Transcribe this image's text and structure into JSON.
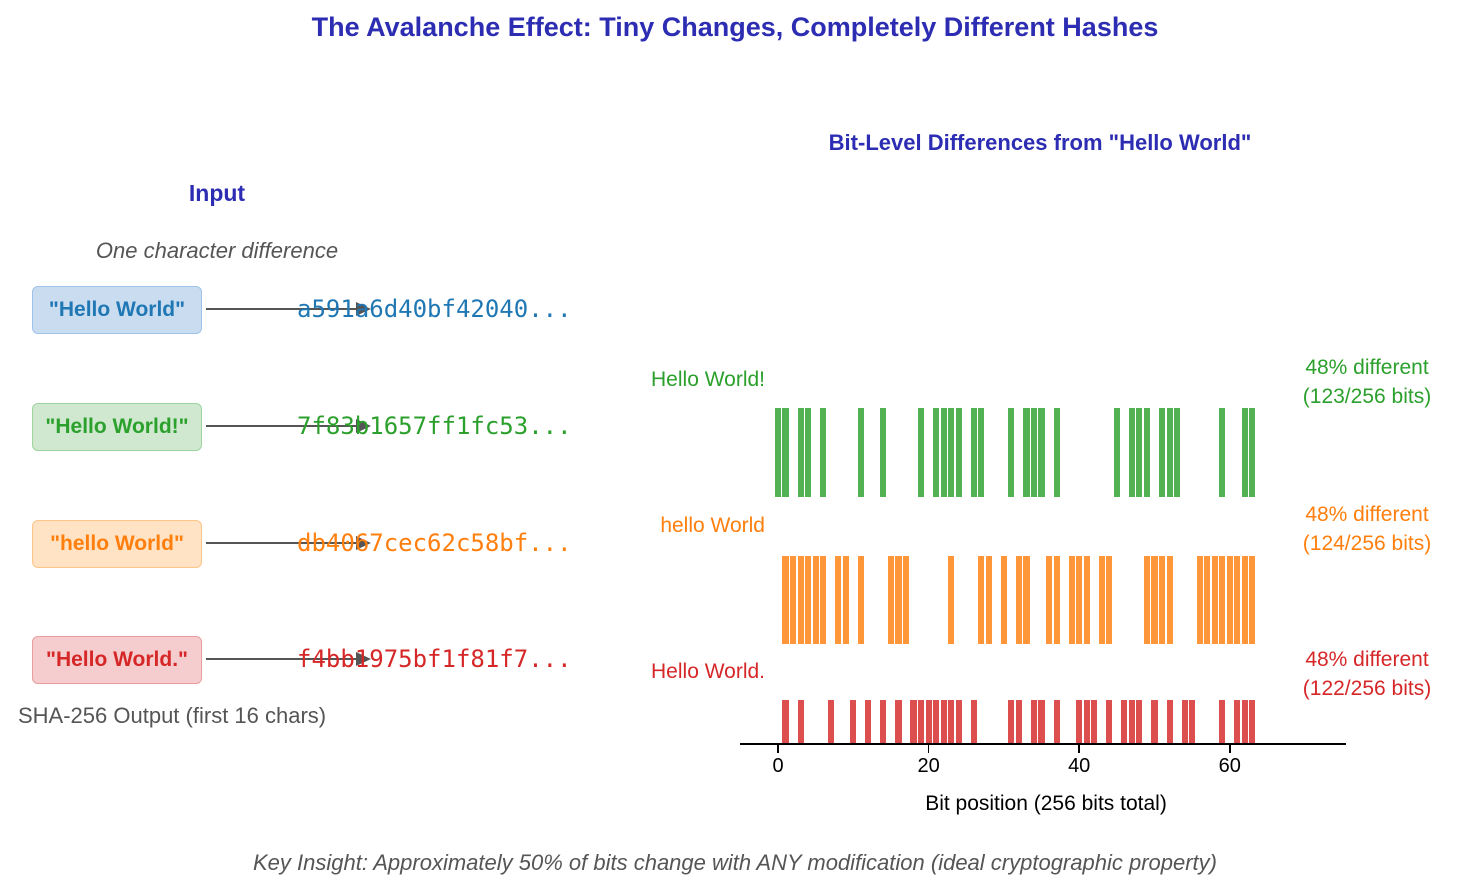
{
  "title": "The Avalanche Effect: Tiny Changes, Completely Different Hashes",
  "colors": {
    "title": "#2d2db3",
    "muted_text": "#555555",
    "blue": "#1f77b4",
    "green": "#2ca02c",
    "orange": "#ff7f0e",
    "red": "#d62728"
  },
  "left_panel": {
    "header": "Input",
    "subtitle": "One character difference",
    "footer": "SHA-256 Output (first 16 chars)",
    "inputs": [
      {
        "label": "\"Hello World\"",
        "hash": "a591a6d40bf42040...",
        "color": "#1f77b4"
      },
      {
        "label": "\"Hello World!\"",
        "hash": "7f83b1657ff1fc53...",
        "color": "#2ca02c"
      },
      {
        "label": "\"hello World\"",
        "hash": "db4067cec62c58bf...",
        "color": "#ff7f0e"
      },
      {
        "label": "\"Hello World.\"",
        "hash": "f4bb1975bf1f81f7...",
        "color": "#d62728"
      }
    ]
  },
  "chart_data": {
    "type": "event-barcode",
    "title": "Bit-Level Differences from \"Hello World\"",
    "baseline_input": "\"Hello World\"",
    "xlabel": "Bit position (256 bits total)",
    "x_ticks": [
      0,
      20,
      40,
      60
    ],
    "bits_shown": 64,
    "total_bits": 256,
    "legend_position": "none",
    "series": [
      {
        "name": "Hello World!",
        "color": "#2ca02c",
        "pct_label": "48% different",
        "bits_label": "(123/256 bits)",
        "diff_bits_first64": "1101101000010010000101111011000101110100000001011101110000010011"
      },
      {
        "name": "hello World",
        "color": "#ff7f0e",
        "pct_label": "48% different",
        "bits_label": "(124/256 bits)",
        "diff_bits_first64": "0111111011010001110000010001101011001101110110000111100011111111"
      },
      {
        "name": "Hello World.",
        "color": "#d62728",
        "pct_label": "48% different",
        "bits_label": "(122/256 bits)",
        "diff_bits_first64": "0101000100101010101111111010000110110100111010111010101100010111"
      }
    ]
  },
  "footer": "Key Insight: Approximately 50% of bits change with ANY modification (ideal cryptographic property)"
}
